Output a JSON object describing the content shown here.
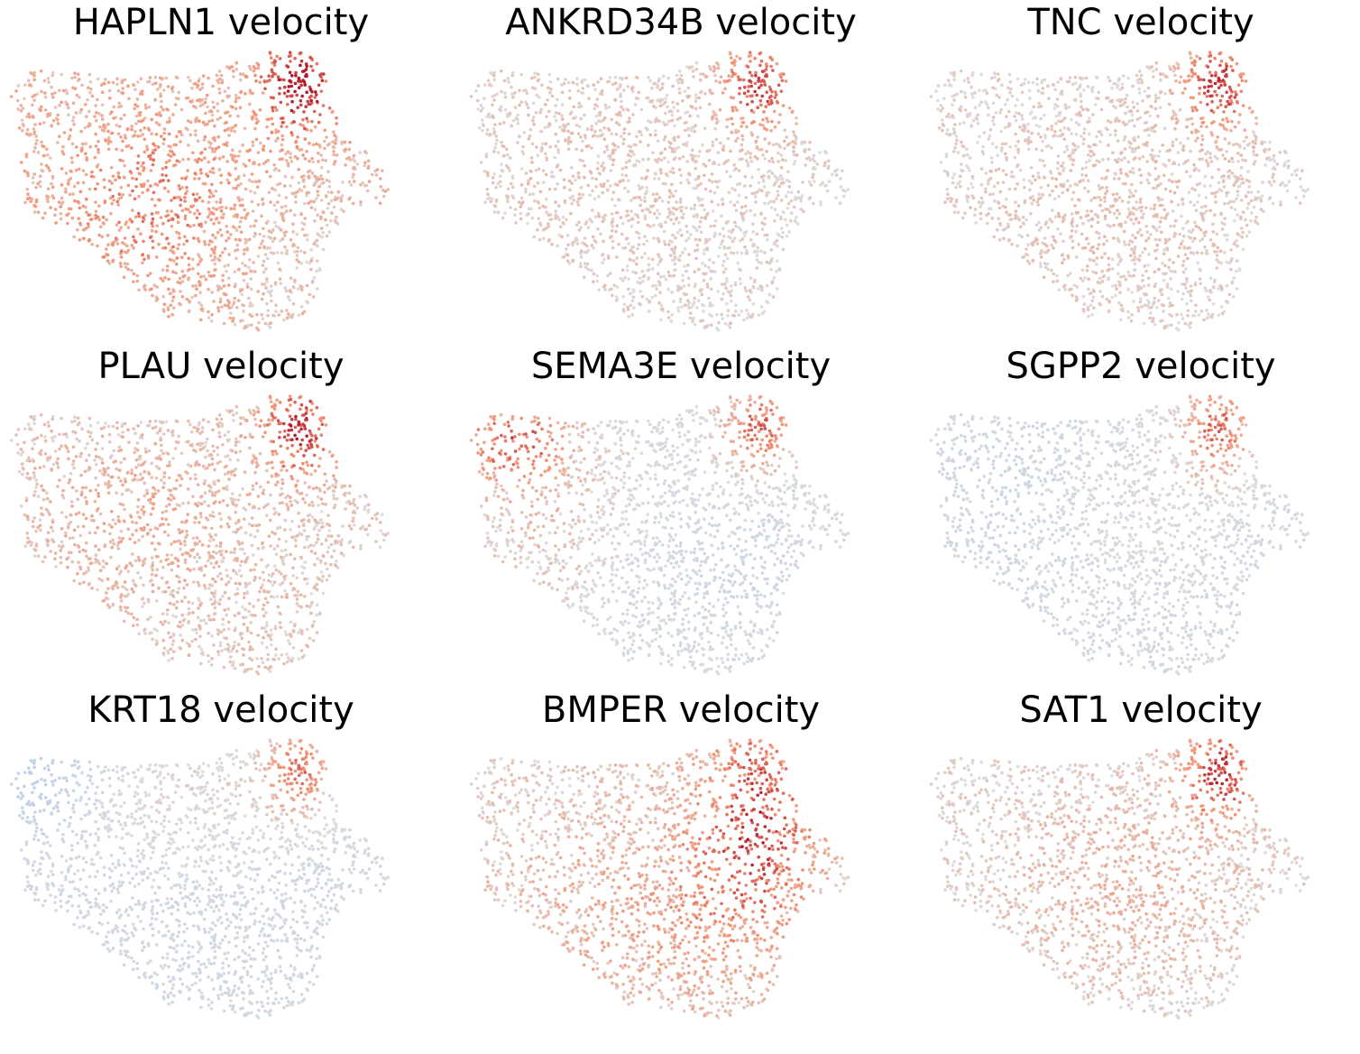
{
  "chart_data": {
    "type": "scatter",
    "colormap": "coolwarm",
    "colors": {
      "low": "#b6cdf0",
      "mid": "#dcdcdc",
      "high": "#b2182b"
    },
    "axes_visible": false,
    "grid": false,
    "panels": [
      {
        "title": "HAPLN1 velocity",
        "pattern": "hapln1"
      },
      {
        "title": "ANKRD34B velocity",
        "pattern": "ankrd34b"
      },
      {
        "title": "TNC velocity",
        "pattern": "tnc"
      },
      {
        "title": "PLAU velocity",
        "pattern": "plau"
      },
      {
        "title": "SEMA3E velocity",
        "pattern": "sema3e"
      },
      {
        "title": "SGPP2 velocity",
        "pattern": "sgpp2"
      },
      {
        "title": "KRT18 velocity",
        "pattern": "krt18"
      },
      {
        "title": "BMPER velocity",
        "pattern": "bmper"
      },
      {
        "title": "SAT1 velocity",
        "pattern": "sat1"
      }
    ]
  }
}
